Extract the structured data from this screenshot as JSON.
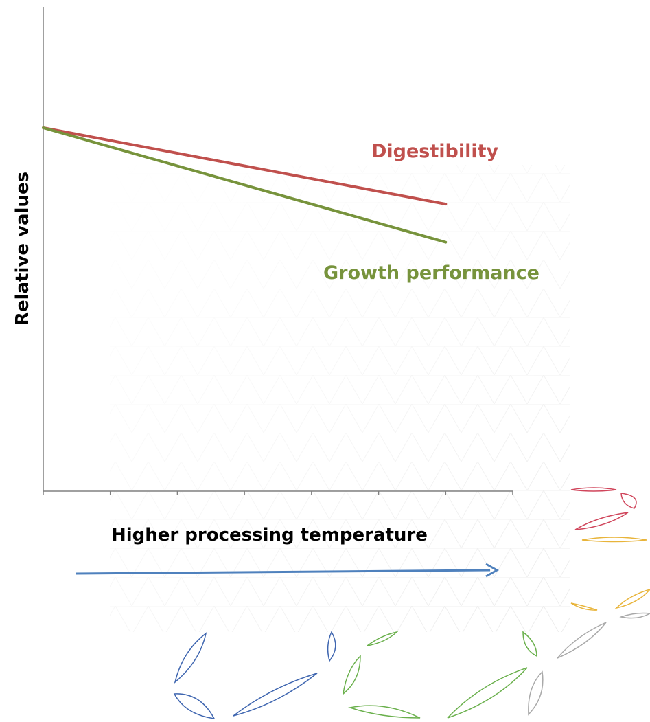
{
  "chart_data": {
    "type": "line",
    "title": "",
    "xlabel": "Higher processing temperature",
    "ylabel": "Relative values",
    "x": [
      0,
      6
    ],
    "xlim": [
      0,
      7
    ],
    "x_ticks": 7,
    "ylim": [
      0,
      100
    ],
    "grid": false,
    "legend": "none (series labelled directly on the plot)",
    "series": [
      {
        "name": "Digestibility",
        "color": "#c0504d",
        "x": [
          0,
          6
        ],
        "values": [
          100,
          79
        ]
      },
      {
        "name": "Growth performance",
        "color": "#77933c",
        "x": [
          0,
          6
        ],
        "values": [
          100,
          68.5
        ]
      }
    ],
    "arrow": {
      "direction": "right",
      "color": "#4f81bd"
    },
    "decorations": {
      "petal_colors": [
        "#d0455b",
        "#e8b43a",
        "#a9a9a9",
        "#3f66b0",
        "#6ab04c"
      ]
    }
  }
}
